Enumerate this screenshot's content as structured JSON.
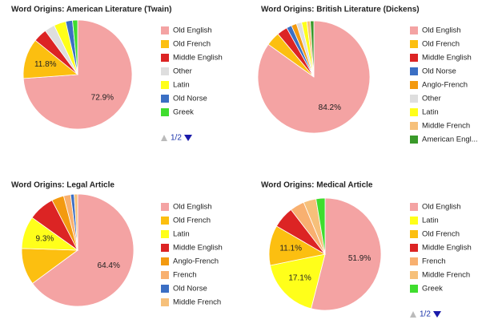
{
  "chart_data": [
    {
      "type": "pie",
      "title": "Word Origins: American Literature (Twain)",
      "categories": [
        "Old English",
        "Old French",
        "Middle English",
        "Other",
        "Latin",
        "Old Norse",
        "Greek"
      ],
      "values": [
        72.9,
        11.8,
        4,
        3,
        3.5,
        2,
        1.5
      ],
      "value_labels": [
        "72.9%",
        "11.8%",
        null,
        null,
        null,
        null,
        null
      ],
      "colors": [
        "#f4a3a3",
        "#fcbf10",
        "#dc2424",
        "#dedede",
        "#ffff1a",
        "#3b6fc4",
        "#3fdd2e"
      ],
      "pager": "1/2"
    },
    {
      "type": "pie",
      "title": "Word Origins: British Literature (Dickens)",
      "categories": [
        "Old English",
        "Old French",
        "Middle English",
        "Old Norse",
        "Anglo-French",
        "Other",
        "Latin",
        "Middle French",
        "American Engl..."
      ],
      "values": [
        84.2,
        4,
        3,
        1.5,
        1.5,
        1.5,
        1.5,
        1,
        1
      ],
      "value_labels": [
        "84.2%",
        null,
        null,
        null,
        null,
        null,
        null,
        null,
        null
      ],
      "colors": [
        "#f4a3a3",
        "#fcbf10",
        "#dc2424",
        "#3b6fc4",
        "#f39a10",
        "#dedede",
        "#ffff1a",
        "#f6c07a",
        "#3a9a2a"
      ]
    },
    {
      "type": "pie",
      "title": "Word Origins: Legal Article",
      "categories": [
        "Old English",
        "Old French",
        "Latin",
        "Middle English",
        "Anglo-French",
        "French",
        "Old Norse",
        "Middle French"
      ],
      "values": [
        64.4,
        10.5,
        9.3,
        7.5,
        3.5,
        2,
        1,
        1
      ],
      "value_labels": [
        "64.4%",
        null,
        "9.3%",
        null,
        null,
        null,
        null,
        null
      ],
      "colors": [
        "#f4a3a3",
        "#fcbf10",
        "#ffff1a",
        "#dc2424",
        "#f39a10",
        "#f8b070",
        "#3b6fc4",
        "#f6c07a"
      ]
    },
    {
      "type": "pie",
      "title": "Word Origins: Medical Article",
      "categories": [
        "Old English",
        "Latin",
        "Old French",
        "Middle English",
        "French",
        "Middle French",
        "Greek"
      ],
      "values": [
        51.9,
        17.1,
        11.1,
        6,
        4,
        3.5,
        2.5
      ],
      "value_labels": [
        "51.9%",
        "17.1%",
        "11.1%",
        null,
        null,
        null,
        null
      ],
      "colors": [
        "#f4a3a3",
        "#ffff1a",
        "#fcbf10",
        "#dc2424",
        "#f8b070",
        "#f6c07a",
        "#3fdd2e"
      ],
      "pager": "1/2"
    }
  ]
}
